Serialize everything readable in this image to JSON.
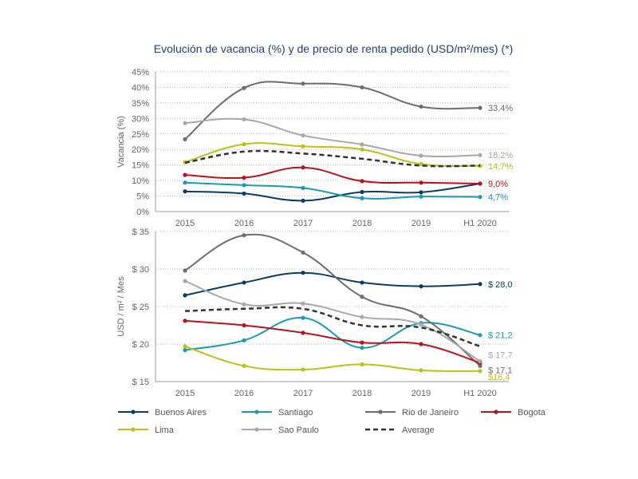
{
  "title": "Evolución de vacancia (%) y de precio de renta pedido (USD/m²/mes) (*)",
  "series_styles": [
    {
      "name": "Buenos Aires",
      "color": "#0d3b66"
    },
    {
      "name": "Santiago",
      "color": "#1a9bb5"
    },
    {
      "name": "Rio de Janeiro",
      "color": "#6d6d6d"
    },
    {
      "name": "Bogota",
      "color": "#c0101c"
    },
    {
      "name": "Lima",
      "color": "#bfc010"
    },
    {
      "name": "Sao Paulo",
      "color": "#a8a8a8"
    },
    {
      "name": "Average",
      "color": "#333333",
      "dashed": true
    }
  ],
  "chart_data": [
    {
      "type": "line",
      "id": "vacancy",
      "ylabel": "Vacancia (%)",
      "categories": [
        "2015",
        "2016",
        "2017",
        "2018",
        "2019",
        "H1 2020"
      ],
      "ylim": [
        0,
        45
      ],
      "yticks": [
        0,
        5,
        10,
        15,
        20,
        25,
        30,
        35,
        40,
        45
      ],
      "ytick_labels": [
        "0%",
        "5%",
        "10%",
        "15%",
        "20%",
        "25%",
        "30%",
        "35%",
        "40%",
        "45%"
      ],
      "grid": true,
      "series": [
        {
          "name": "Buenos Aires",
          "values": [
            6.5,
            5.8,
            3.5,
            6.3,
            6.2,
            9.0
          ]
        },
        {
          "name": "Santiago",
          "values": [
            9.3,
            8.5,
            7.6,
            4.3,
            4.8,
            4.7
          ]
        },
        {
          "name": "Rio de Janeiro",
          "values": [
            23.3,
            39.8,
            41.2,
            40.0,
            33.8,
            33.4
          ]
        },
        {
          "name": "Bogota",
          "values": [
            11.8,
            10.9,
            14.2,
            9.8,
            9.3,
            9.0
          ]
        },
        {
          "name": "Lima",
          "values": [
            15.9,
            21.7,
            21.0,
            20.0,
            15.3,
            14.7
          ]
        },
        {
          "name": "Sao Paulo",
          "values": [
            28.5,
            29.7,
            24.5,
            21.6,
            18.0,
            18.2
          ]
        },
        {
          "name": "Average",
          "values": [
            15.7,
            19.3,
            18.7,
            17.0,
            14.8,
            14.8
          ]
        }
      ],
      "end_labels": [
        {
          "text": "33,4%",
          "series": "Rio de Janeiro"
        },
        {
          "text": "18,2%",
          "series": "Sao Paulo"
        },
        {
          "text": "14,7%",
          "series": "Lima"
        },
        {
          "text": "9,0%",
          "series": "Bogota"
        },
        {
          "text": "4,7%",
          "series": "Santiago"
        }
      ]
    },
    {
      "type": "line",
      "id": "rent",
      "ylabel": "USD / m² / Mes",
      "categories": [
        "2015",
        "2016",
        "2017",
        "2018",
        "2019",
        "H1 2020"
      ],
      "ylim": [
        15,
        35
      ],
      "yticks": [
        15,
        20,
        25,
        30,
        35
      ],
      "ytick_labels": [
        "$ 15",
        "$ 20",
        "$ 25",
        "$ 30",
        "$ 35"
      ],
      "grid": true,
      "series": [
        {
          "name": "Buenos Aires",
          "values": [
            26.5,
            28.2,
            29.5,
            28.2,
            27.7,
            28.0
          ]
        },
        {
          "name": "Santiago",
          "values": [
            19.2,
            20.5,
            23.5,
            19.5,
            22.8,
            21.2
          ]
        },
        {
          "name": "Rio de Janeiro",
          "values": [
            29.8,
            34.5,
            32.2,
            26.3,
            23.7,
            17.1
          ]
        },
        {
          "name": "Bogota",
          "values": [
            23.1,
            22.5,
            21.5,
            20.2,
            20.0,
            17.5
          ]
        },
        {
          "name": "Lima",
          "values": [
            19.7,
            17.1,
            16.6,
            17.3,
            16.5,
            16.4
          ]
        },
        {
          "name": "Sao Paulo",
          "values": [
            28.4,
            25.3,
            25.4,
            23.6,
            22.6,
            17.7
          ]
        },
        {
          "name": "Average",
          "values": [
            24.4,
            24.7,
            24.7,
            22.5,
            22.2,
            19.7
          ]
        }
      ],
      "end_labels": [
        {
          "text": "$ 28,0",
          "series": "Buenos Aires"
        },
        {
          "text": "$ 21,2",
          "series": "Santiago"
        },
        {
          "text": "$ 17,7",
          "series": "Sao Paulo"
        },
        {
          "text": "$ 17,1",
          "series": "Rio de Janeiro"
        },
        {
          "text": "$16,4",
          "series": "Lima"
        }
      ]
    }
  ],
  "legend": {
    "placement": "bottom",
    "items": [
      "Buenos Aires",
      "Santiago",
      "Rio de Janeiro",
      "Bogota",
      "Lima",
      "Sao Paulo",
      "Average"
    ]
  }
}
